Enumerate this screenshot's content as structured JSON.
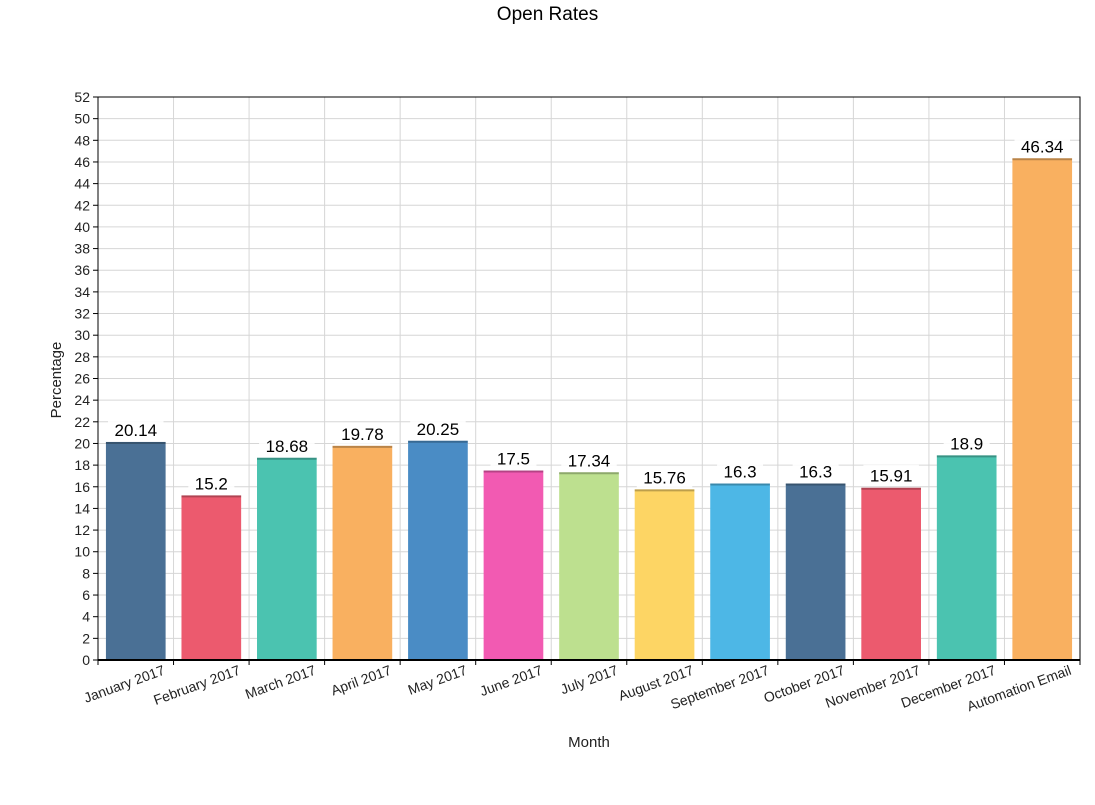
{
  "chart_data": {
    "type": "bar",
    "title": "Open Rates",
    "xlabel": "Month",
    "ylabel": "Percentage",
    "ylim": [
      0,
      52
    ],
    "ytick_step": 2,
    "grid": true,
    "legend": "none",
    "categories": [
      "January 2017",
      "February 2017",
      "March 2017",
      "April 2017",
      "May 2017",
      "June 2017",
      "July 2017",
      "August 2017",
      "September 2017",
      "October 2017",
      "November 2017",
      "December 2017",
      "Automation Email"
    ],
    "values": [
      20.14,
      15.2,
      18.68,
      19.78,
      20.25,
      17.5,
      17.34,
      15.76,
      16.3,
      16.3,
      15.91,
      18.9,
      46.34
    ],
    "data_labels": [
      "20.14",
      "15.2",
      "18.68",
      "19.78",
      "20.25",
      "17.5",
      "17.34",
      "15.76",
      "16.3",
      "16.3",
      "15.91",
      "18.9",
      "46.34"
    ],
    "colors": [
      "#4a7095",
      "#ec5a6e",
      "#4bc3b0",
      "#f9b060",
      "#4a8cc5",
      "#f25ab2",
      "#bde08f",
      "#fdd564",
      "#4db7e6",
      "#4a7095",
      "#ec5a6e",
      "#4bc3b0",
      "#f9b060"
    ]
  }
}
